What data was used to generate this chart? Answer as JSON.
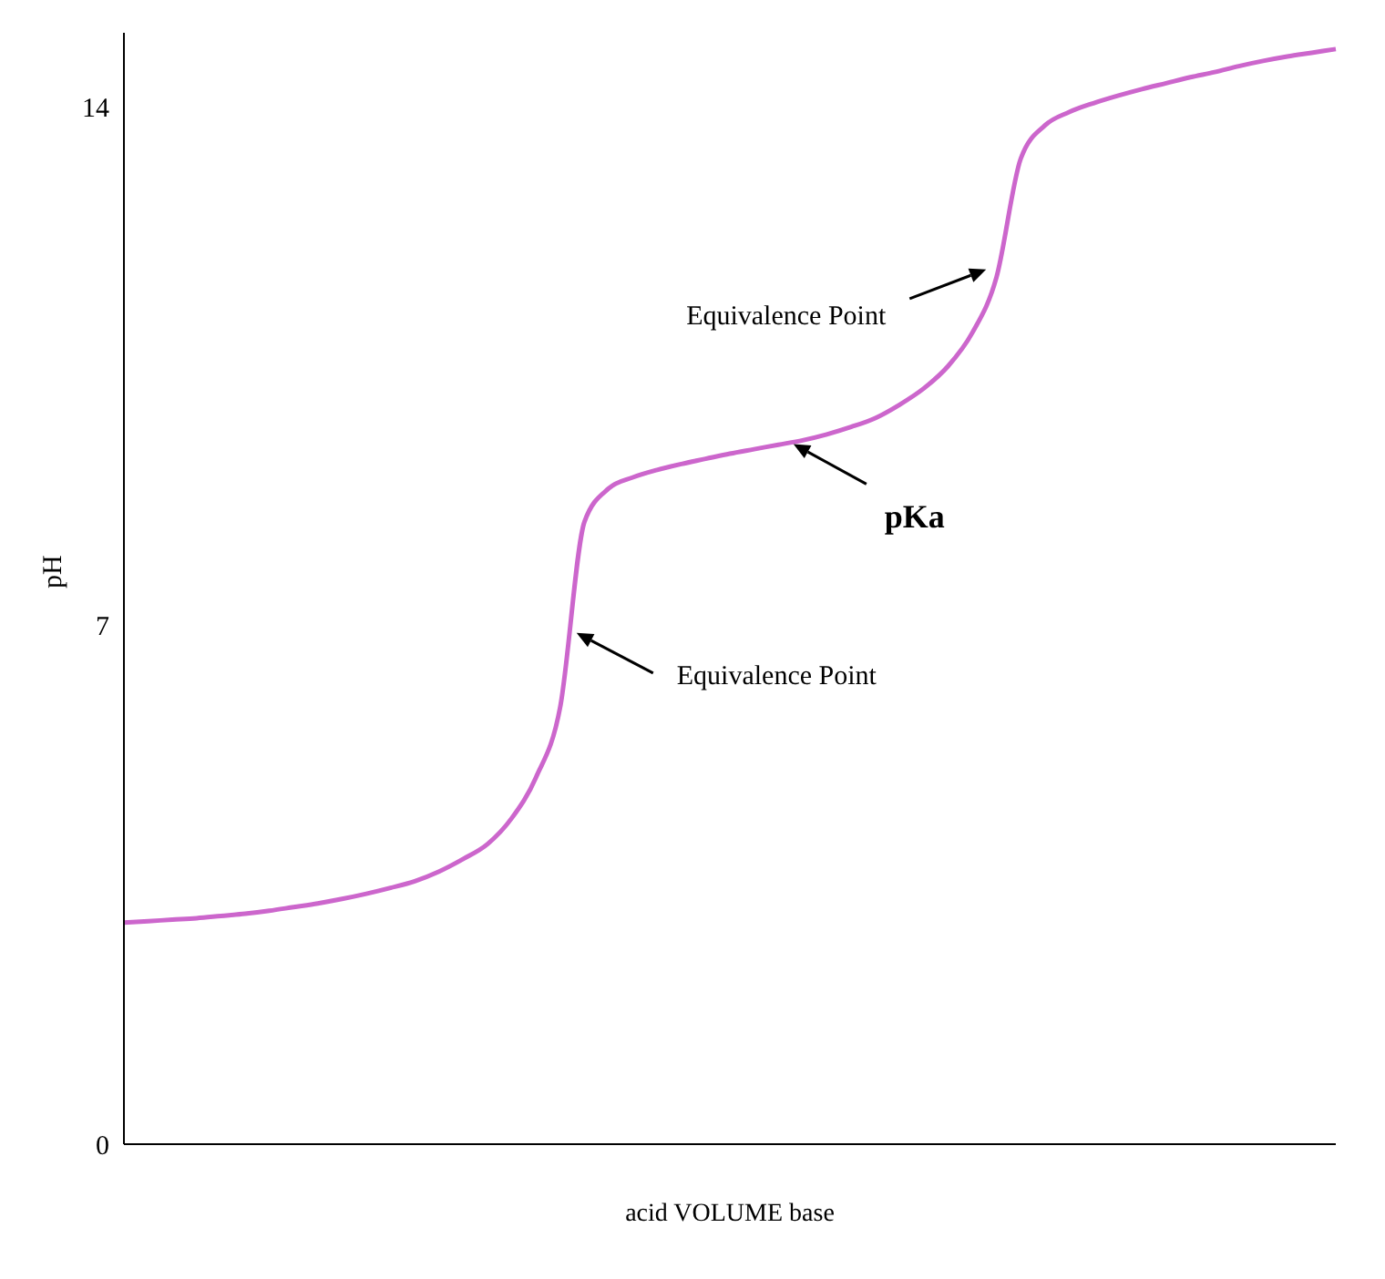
{
  "chart_data": {
    "type": "line",
    "xlabel": "acid VOLUME base",
    "ylabel": "pH",
    "categories": [
      null,
      null,
      null,
      null,
      null,
      null,
      null,
      null,
      null,
      null,
      null,
      null,
      null,
      null,
      null,
      null,
      null,
      null,
      null,
      null,
      null,
      null,
      null,
      null,
      null,
      null,
      null,
      null,
      null,
      null,
      null,
      null,
      null,
      null,
      null,
      null,
      null,
      null,
      null,
      null,
      null,
      null,
      null,
      null,
      null,
      null,
      null,
      null,
      null,
      null,
      null
    ],
    "series": [
      {
        "color": "#cc66cc",
        "values": [
          2.99,
          3.01,
          3.03,
          3.05,
          3.08,
          3.11,
          3.15,
          3.2,
          3.25,
          3.31,
          3.38,
          3.46,
          3.55,
          3.68,
          3.85,
          4.05,
          4.4,
          4.95,
          5.9,
          8.4,
          8.85,
          9.0,
          9.1,
          9.18,
          9.25,
          9.32,
          9.38,
          9.44,
          9.5,
          9.58,
          9.68,
          9.8,
          9.98,
          10.2,
          10.5,
          10.95,
          11.7,
          13.3,
          13.75,
          13.93,
          14.05,
          14.15,
          14.24,
          14.32,
          14.4,
          14.47,
          14.55,
          14.62,
          14.68,
          14.73,
          14.78
        ]
      }
    ],
    "ylim": [
      0,
      15
    ],
    "yticks": [
      0,
      7,
      14
    ],
    "grid": false,
    "legend": false,
    "marker": "none",
    "line_style": "solid",
    "annotations": [
      "Equivalence Point",
      "pKa",
      "Equivalence Point"
    ]
  }
}
